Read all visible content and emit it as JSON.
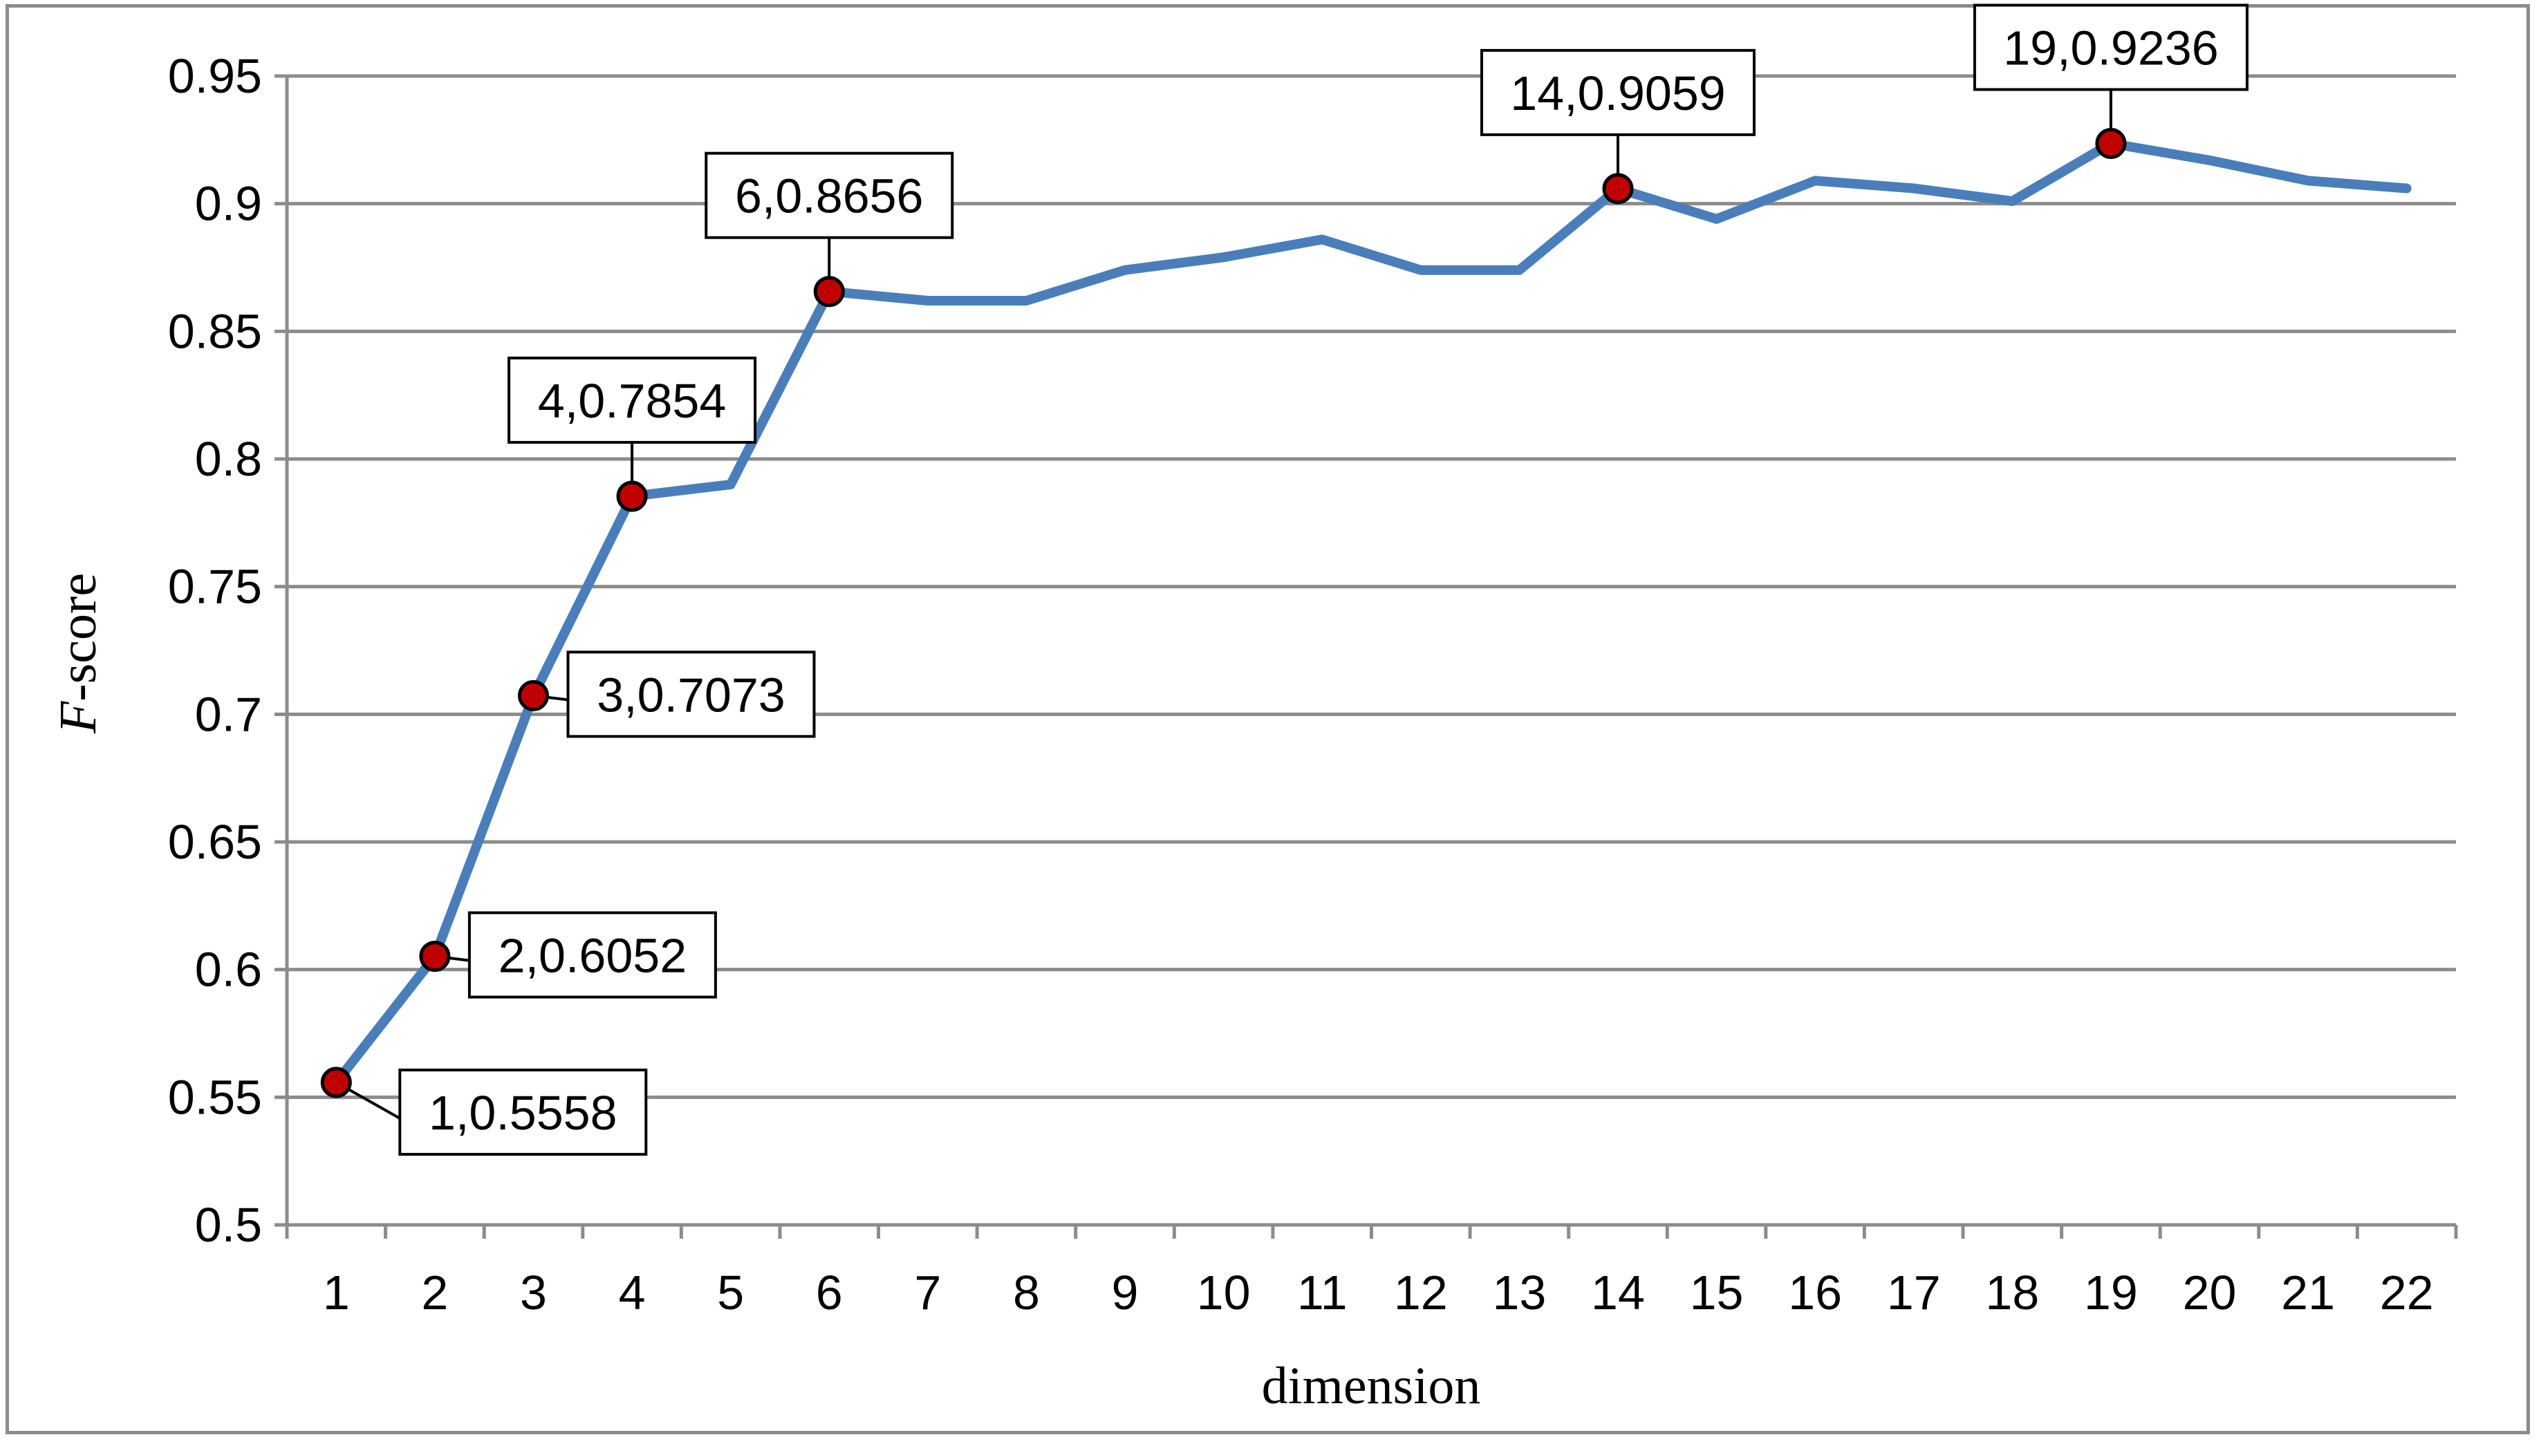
{
  "chart_data": {
    "type": "line",
    "title": "",
    "xlabel": "dimension",
    "ylabel_italic_part": "F",
    "ylabel_rest": "-score",
    "categories": [
      "1",
      "2",
      "3",
      "4",
      "5",
      "6",
      "7",
      "8",
      "9",
      "10",
      "11",
      "12",
      "13",
      "14",
      "15",
      "16",
      "17",
      "18",
      "19",
      "20",
      "21",
      "22"
    ],
    "series": [
      {
        "values": [
          0.5558,
          0.6052,
          0.7073,
          0.7854,
          0.79,
          0.8656,
          0.862,
          0.862,
          0.874,
          0.879,
          0.886,
          0.874,
          0.874,
          0.9059,
          0.894,
          0.909,
          0.906,
          0.901,
          0.9236,
          0.917,
          0.909,
          0.906
        ]
      }
    ],
    "yticks": [
      "0.5",
      "0.55",
      "0.6",
      "0.65",
      "0.7",
      "0.75",
      "0.8",
      "0.85",
      "0.9",
      "0.95"
    ],
    "ylim": [
      0.5,
      0.95
    ],
    "grid": true,
    "line_color": "#4a7ebb",
    "marker_color": "#c00000",
    "annotations": [
      {
        "label": "1,0.5558",
        "x": 1,
        "y": 0.5558,
        "position": "lower-right"
      },
      {
        "label": "2,0.6052",
        "x": 2,
        "y": 0.6052,
        "position": "right"
      },
      {
        "label": "3,0.7073",
        "x": 3,
        "y": 0.7073,
        "position": "right"
      },
      {
        "label": "4,0.7854",
        "x": 4,
        "y": 0.7854,
        "position": "above"
      },
      {
        "label": "6,0.8656",
        "x": 6,
        "y": 0.8656,
        "position": "above"
      },
      {
        "label": "14,0.9059",
        "x": 14,
        "y": 0.9059,
        "position": "above"
      },
      {
        "label": "19,0.9236",
        "x": 19,
        "y": 0.9236,
        "position": "above"
      }
    ]
  }
}
